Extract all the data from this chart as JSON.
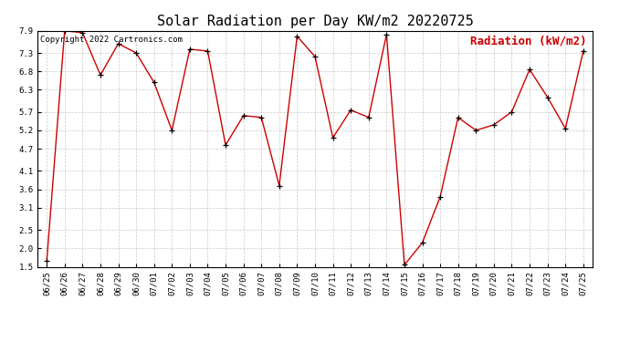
{
  "title": "Solar Radiation per Day KW/m2 20220725",
  "copyright_text": "Copyright 2022 Cartronics.com",
  "legend_label": "Radiation (kW/m2)",
  "dates": [
    "06/25",
    "06/26",
    "06/27",
    "06/28",
    "06/29",
    "06/30",
    "07/01",
    "07/02",
    "07/03",
    "07/04",
    "07/05",
    "07/06",
    "07/07",
    "07/08",
    "07/09",
    "07/10",
    "07/11",
    "07/12",
    "07/13",
    "07/14",
    "07/15",
    "07/16",
    "07/17",
    "07/18",
    "07/19",
    "07/20",
    "07/21",
    "07/22",
    "07/23",
    "07/24",
    "07/25"
  ],
  "values": [
    1.65,
    7.9,
    7.85,
    6.7,
    7.55,
    7.3,
    6.5,
    5.2,
    7.4,
    7.35,
    4.8,
    5.6,
    5.55,
    3.7,
    7.75,
    7.2,
    5.0,
    5.75,
    5.55,
    7.8,
    1.55,
    2.15,
    3.4,
    5.55,
    5.2,
    5.35,
    5.7,
    6.85,
    6.1,
    5.25,
    7.35
  ],
  "line_color": "#cc0000",
  "marker_color": "#000000",
  "background_color": "#ffffff",
  "grid_color": "#bbbbbb",
  "ylim": [
    1.5,
    7.9
  ],
  "yticks": [
    1.5,
    2.0,
    2.5,
    3.1,
    3.6,
    4.1,
    4.7,
    5.2,
    5.7,
    6.3,
    6.8,
    7.3,
    7.9
  ],
  "title_fontsize": 11,
  "copyright_fontsize": 6.5,
  "legend_fontsize": 9,
  "tick_fontsize": 6.5
}
